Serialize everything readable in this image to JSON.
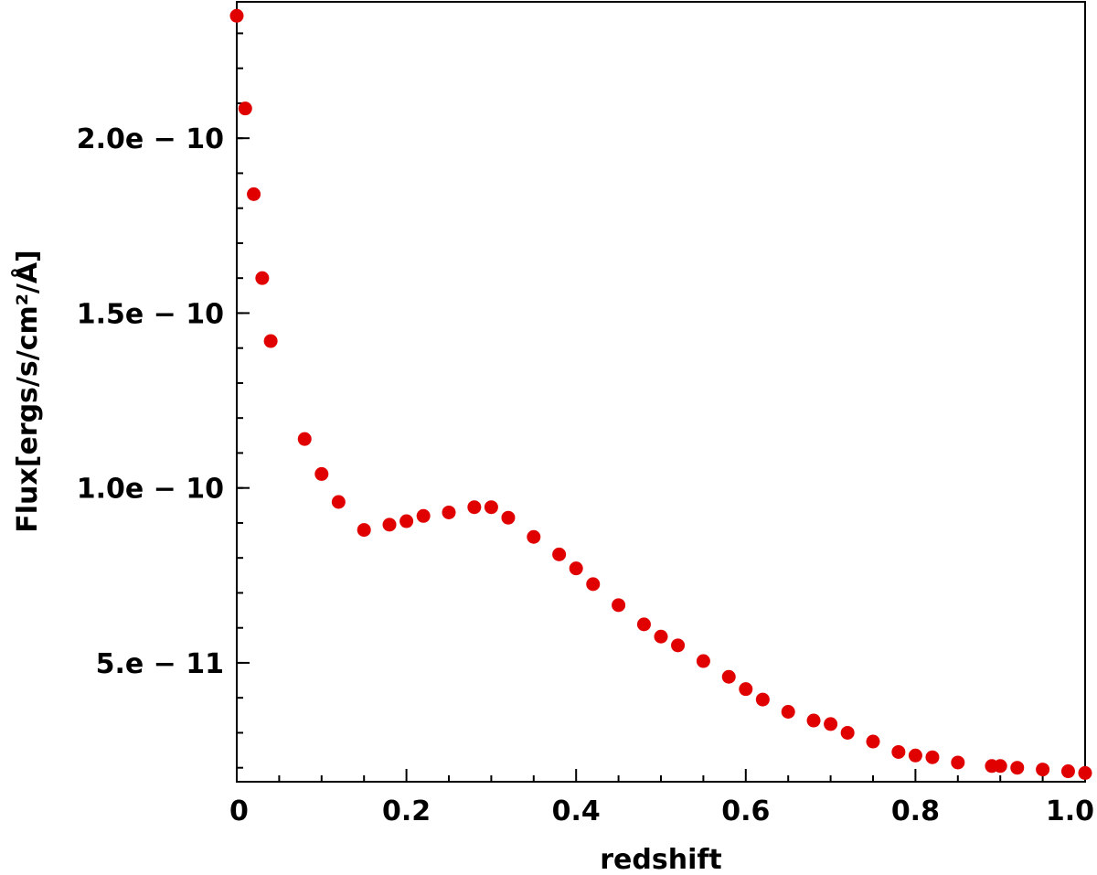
{
  "chart_data": {
    "type": "scatter",
    "title": "",
    "xlabel": "redshift",
    "ylabel": "Flux[ergs/s/cm²/Å]",
    "xlim": [
      0.0,
      1.0
    ],
    "ylim": [
      1.6e-11,
      2.39e-10
    ],
    "grid": false,
    "legend": "none",
    "marker_color": "#e00000",
    "x_ticks": [
      {
        "value": 0.0,
        "label": "0"
      },
      {
        "value": 0.2,
        "label": "0.2"
      },
      {
        "value": 0.4,
        "label": "0.4"
      },
      {
        "value": 0.6,
        "label": "0.6"
      },
      {
        "value": 0.8,
        "label": "0.8"
      },
      {
        "value": 1.0,
        "label": "1.0"
      }
    ],
    "y_ticks": [
      {
        "value": 5e-11,
        "label": "5.e − 11"
      },
      {
        "value": 1e-10,
        "label": "1.0e − 10"
      },
      {
        "value": 1.5e-10,
        "label": "1.5e − 10"
      },
      {
        "value": 2e-10,
        "label": "2.0e − 10"
      }
    ],
    "y_minor_step": 1e-11,
    "series": [
      {
        "name": "flux",
        "x": [
          0.0,
          0.01,
          0.02,
          0.03,
          0.04,
          0.08,
          0.1,
          0.12,
          0.15,
          0.18,
          0.2,
          0.22,
          0.25,
          0.28,
          0.3,
          0.32,
          0.35,
          0.38,
          0.4,
          0.42,
          0.45,
          0.48,
          0.5,
          0.52,
          0.55,
          0.58,
          0.6,
          0.62,
          0.65,
          0.68,
          0.7,
          0.72,
          0.75,
          0.78,
          0.8,
          0.82,
          0.85,
          0.89,
          0.9,
          0.92,
          0.95,
          0.98,
          1.0
        ],
        "y": [
          2.35e-10,
          2.085e-10,
          1.84e-10,
          1.6e-10,
          1.42e-10,
          1.14e-10,
          1.04e-10,
          9.6e-11,
          8.8e-11,
          8.95e-11,
          9.05e-11,
          9.2e-11,
          9.3e-11,
          9.45e-11,
          9.45e-11,
          9.15e-11,
          8.6e-11,
          8.1e-11,
          7.7e-11,
          7.25e-11,
          6.65e-11,
          6.1e-11,
          5.75e-11,
          5.5e-11,
          5.05e-11,
          4.6e-11,
          4.25e-11,
          3.95e-11,
          3.6e-11,
          3.35e-11,
          3.25e-11,
          3e-11,
          2.75e-11,
          2.45e-11,
          2.35e-11,
          2.3e-11,
          2.15e-11,
          2.05e-11,
          2.05e-11,
          2e-11,
          1.95e-11,
          1.9e-11,
          1.85e-11
        ]
      }
    ]
  }
}
